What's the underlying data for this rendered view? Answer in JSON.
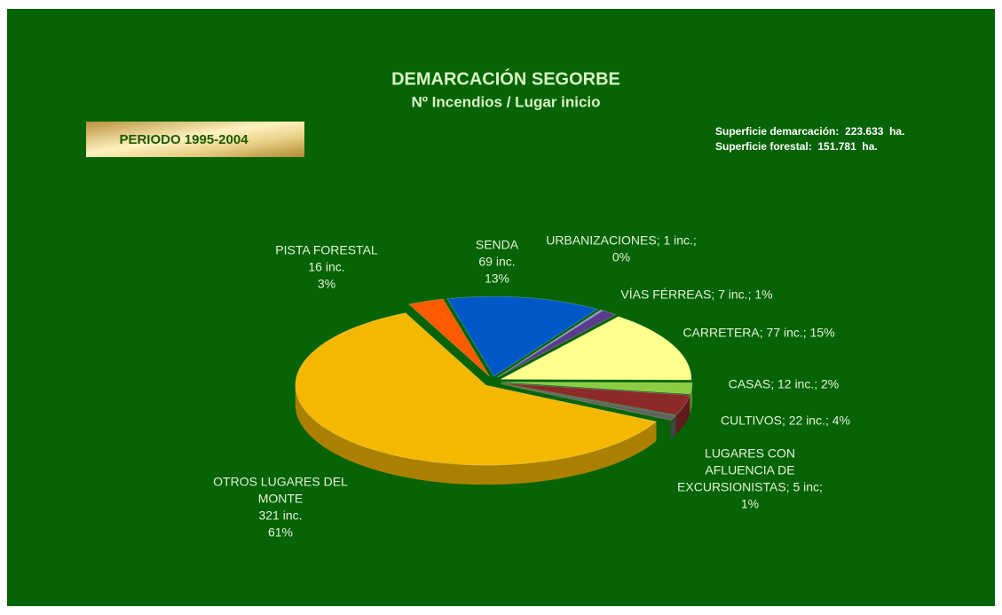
{
  "chart_data": {
    "type": "pie",
    "title": "DEMARCACIÓN SEGORBE",
    "subtitle": "Nº Incendios / Lugar inicio",
    "period": "PERIODO 1995-2004",
    "notes": [
      "Superficie demarcación:  223.633  ha.",
      "Superficie forestal:  151.781  ha."
    ],
    "values": [
      16,
      69,
      1,
      7,
      77,
      12,
      22,
      5,
      321
    ],
    "value_labels": [
      [
        "PISTA FORESTAL",
        "16 inc.",
        "3%"
      ],
      [
        "SENDA",
        "69 inc.",
        "13%"
      ],
      [
        "URBANIZACIONES; 1 inc.;",
        "0%"
      ],
      [
        "VÍAS FÉRREAS; 7 inc.; 1%"
      ],
      [
        "CARRETERA; 77 inc.; 15%"
      ],
      [
        "CASAS; 12 inc.; 2%"
      ],
      [
        "CULTIVOS; 22 inc.; 4%"
      ],
      [
        "LUGARES CON",
        "AFLUENCIA DE",
        "EXCURSIONISTAS; 5 inc;",
        "1%"
      ],
      [
        "OTROS LUGARES DEL",
        "MONTE",
        "321 inc.",
        "61%"
      ]
    ],
    "colors": [
      "#ff5a00",
      "#0058c8",
      "#9090ff",
      "#5a3c8c",
      "#ffff8c",
      "#8ccc40",
      "#8c2a2a",
      "#606060",
      "#f5b800"
    ]
  }
}
